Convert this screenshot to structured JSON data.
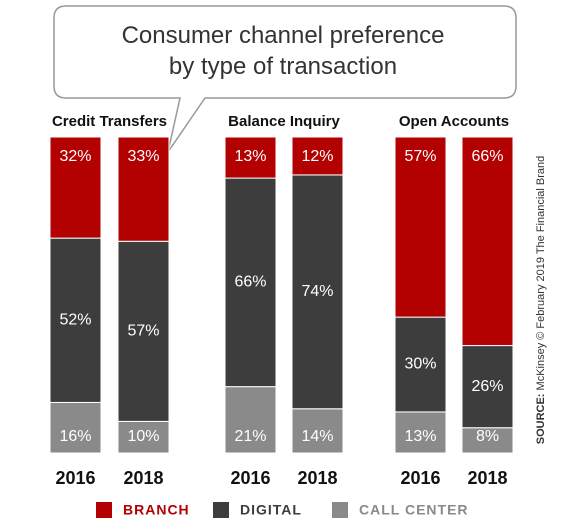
{
  "title": "Consumer channel preference by type of transaction",
  "source_label": "SOURCE:",
  "source": "McKinsey © February 2019 The Financial Brand",
  "chart_data": [
    {
      "type": "bar",
      "stacked": true,
      "title": "Credit Transfers",
      "categories": [
        "2016",
        "2018"
      ],
      "ylim": [
        0,
        100
      ],
      "series": [
        {
          "name": "CALL CENTER",
          "color": "#8a8a8a",
          "values": [
            16,
            10
          ],
          "value_labels": [
            "16%",
            "10%"
          ]
        },
        {
          "name": "DIGITAL",
          "color": "#3d3d3d",
          "values": [
            52,
            57
          ],
          "value_labels": [
            "52%",
            "57%"
          ]
        },
        {
          "name": "BRANCH",
          "color": "#b30000",
          "values": [
            32,
            33
          ],
          "value_labels": [
            "32%",
            "33%"
          ]
        }
      ]
    },
    {
      "type": "bar",
      "stacked": true,
      "title": "Balance Inquiry",
      "categories": [
        "2016",
        "2018"
      ],
      "ylim": [
        0,
        100
      ],
      "series": [
        {
          "name": "CALL CENTER",
          "color": "#8a8a8a",
          "values": [
            21,
            14
          ],
          "value_labels": [
            "21%",
            "14%"
          ]
        },
        {
          "name": "DIGITAL",
          "color": "#3d3d3d",
          "values": [
            66,
            74
          ],
          "value_labels": [
            "66%",
            "74%"
          ]
        },
        {
          "name": "BRANCH",
          "color": "#b30000",
          "values": [
            13,
            12
          ],
          "value_labels": [
            "13%",
            "12%"
          ]
        }
      ]
    },
    {
      "type": "bar",
      "stacked": true,
      "title": "Open Accounts",
      "categories": [
        "2016",
        "2018"
      ],
      "ylim": [
        0,
        100
      ],
      "series": [
        {
          "name": "CALL CENTER",
          "color": "#8a8a8a",
          "values": [
            13,
            8
          ],
          "value_labels": [
            "13%",
            "8%"
          ]
        },
        {
          "name": "DIGITAL",
          "color": "#3d3d3d",
          "values": [
            30,
            26
          ],
          "value_labels": [
            "30%",
            "26%"
          ]
        },
        {
          "name": "BRANCH",
          "color": "#b30000",
          "values": [
            57,
            66
          ],
          "value_labels": [
            "57%",
            "66%"
          ]
        }
      ]
    }
  ]
}
